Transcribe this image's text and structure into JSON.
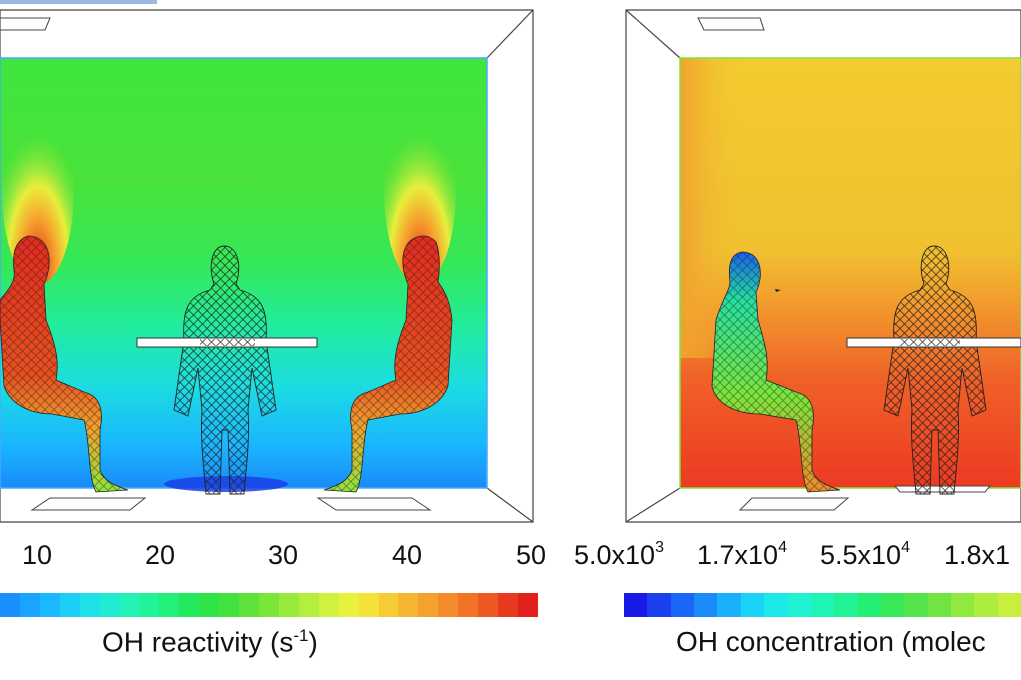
{
  "left_panel": {
    "ticks": [
      "10",
      "20",
      "30",
      "40",
      "50"
    ],
    "label_main": "OH reactivity (s",
    "label_sup": "-1",
    "label_end": ")",
    "colors": [
      "#1c8fff",
      "#1aa4ff",
      "#1ab8ff",
      "#1ccdf6",
      "#1ee0e6",
      "#20ecd2",
      "#22f2b6",
      "#22f398",
      "#22f07a",
      "#22ea5c",
      "#2ee448",
      "#44e23e",
      "#5ee23a",
      "#7ae63a",
      "#98ea3c",
      "#b4ee3e",
      "#d0f23e",
      "#e8f23c",
      "#f4e23a",
      "#f6cc36",
      "#f6b632",
      "#f6a02e",
      "#f48a2a",
      "#f27226",
      "#ee5822",
      "#e83a1e",
      "#e2201c"
    ]
  },
  "right_panel": {
    "ticks": [
      {
        "base": "5.0x10",
        "exp": "3"
      },
      {
        "base": "1.7x10",
        "exp": "4"
      },
      {
        "base": "5.5x10",
        "exp": "4"
      },
      {
        "base": "1.8x1",
        "exp": ""
      }
    ],
    "label_main": "OH concentration (molec",
    "colors": [
      "#1a1ae8",
      "#1a40f0",
      "#1a66f6",
      "#1a8cfa",
      "#1ab0fc",
      "#1ad2f8",
      "#1ce8ea",
      "#1ef2d2",
      "#20f4b4",
      "#22f294",
      "#24ee74",
      "#36e85a",
      "#54e44a",
      "#72e442",
      "#90e840",
      "#aeec3e",
      "#c8ee3e"
    ]
  }
}
